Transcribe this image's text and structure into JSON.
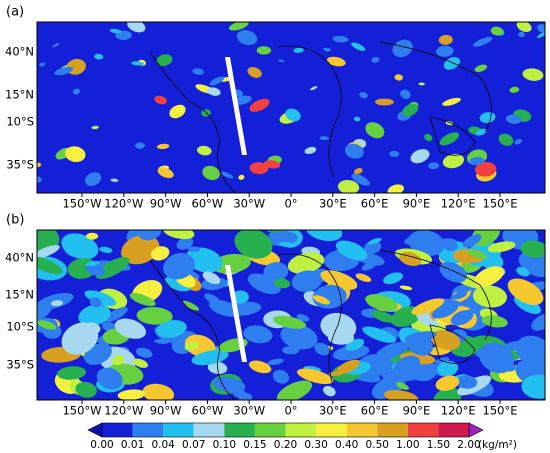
{
  "panels": [
    {
      "label": "(a)",
      "lat_labels": [
        "40°N",
        "15°N",
        "10°S",
        "35°S"
      ],
      "lon_labels": [
        "150°W",
        "120°W",
        "90°W",
        "60°W",
        "30°W",
        "0°",
        "30°E",
        "60°E",
        "90°E",
        "120°E",
        "150°E"
      ]
    },
    {
      "label": "(b)",
      "lat_labels": [
        "40°N",
        "15°N",
        "10°S",
        "35°S"
      ],
      "lon_labels": [
        "150°W",
        "120°W",
        "90°W",
        "60°W",
        "30°W",
        "0°",
        "30°E",
        "60°E",
        "90°E",
        "120°E",
        "150°E"
      ]
    }
  ],
  "colorbar": {
    "unit": "(kg/m²)",
    "ticks": [
      "0.00",
      "0.01",
      "0.04",
      "0.07",
      "0.10",
      "0.15",
      "0.20",
      "0.30",
      "0.40",
      "0.50",
      "1.00",
      "1.50",
      "2.00"
    ],
    "under_color": "#0a10b0",
    "over_color": "#a020c8",
    "colors": [
      "#1420d8",
      "#2f7ef0",
      "#22c0f0",
      "#a8d8f0",
      "#26b050",
      "#66d040",
      "#c0f040",
      "#f5f040",
      "#f5c830",
      "#d8a020",
      "#f04040",
      "#d01850"
    ]
  }
}
